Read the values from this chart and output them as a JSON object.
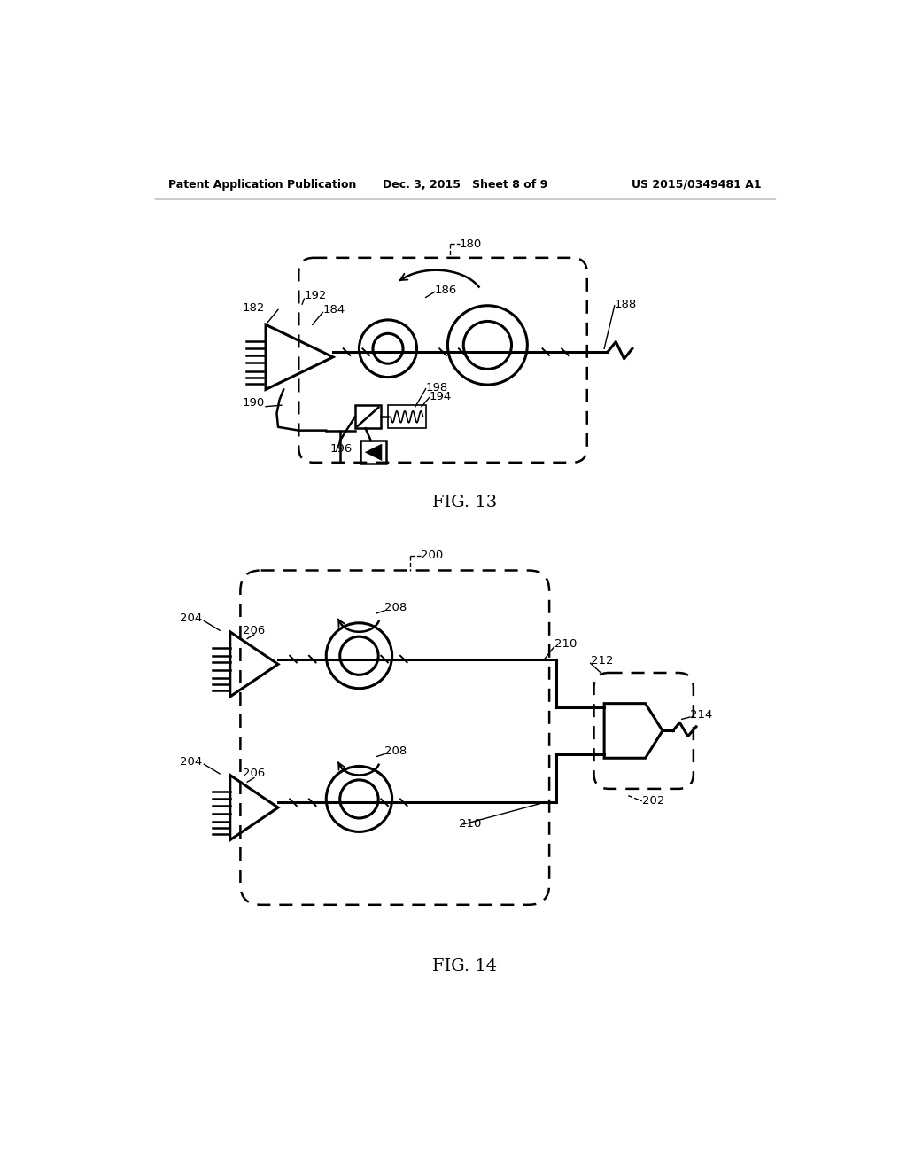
{
  "bg_color": "#ffffff",
  "line_color": "#000000",
  "header_left": "Patent Application Publication",
  "header_center": "Dec. 3, 2015   Sheet 8 of 9",
  "header_right": "US 2015/0349481 A1",
  "fig13_label": "FIG. 13",
  "fig14_label": "FIG. 14"
}
